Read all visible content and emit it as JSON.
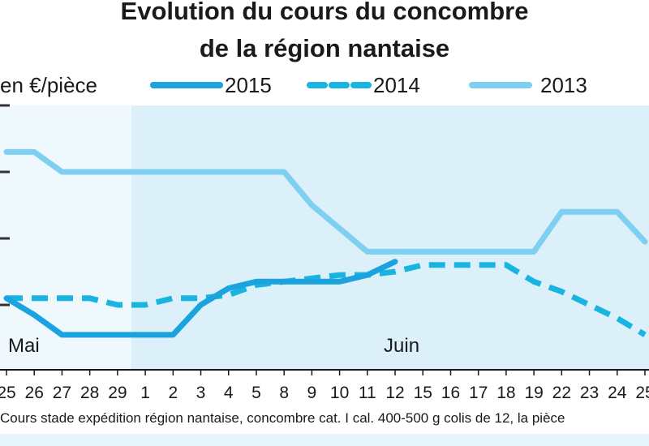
{
  "chart_data": {
    "type": "line",
    "title_line1": "Evolution du cours du concombre",
    "title_line2": "de la région nantaise",
    "ylabel": "en €/pièce",
    "footnote": "Cours stade expédition région nantaise, concombre cat. I cal. 400-500 g colis de 12, la pièce",
    "categories": [
      "25",
      "26",
      "27",
      "28",
      "29",
      "1",
      "2",
      "3",
      "4",
      "5",
      "8",
      "9",
      "10",
      "11",
      "12",
      "15",
      "16",
      "17",
      "18",
      "19",
      "22",
      "23",
      "24",
      "25"
    ],
    "months": [
      {
        "label": "Mai",
        "index": 0
      },
      {
        "label": "Juin",
        "index": 14
      }
    ],
    "grid_levels": [
      0.2,
      0.3,
      0.4,
      0.5,
      0.6
    ],
    "ylim": [
      0.2,
      0.64
    ],
    "series": [
      {
        "name": "2015",
        "color": "#1aa3de",
        "style": "solid",
        "values": [
          0.31,
          0.285,
          0.255,
          0.255,
          0.255,
          0.255,
          0.255,
          0.3,
          0.325,
          0.335,
          0.335,
          0.335,
          0.335,
          0.345,
          0.365,
          null,
          null,
          null,
          null,
          null,
          null,
          null,
          null,
          null
        ]
      },
      {
        "name": "2014",
        "color": "#1ab4e0",
        "style": "dashed",
        "values": [
          0.31,
          0.31,
          0.31,
          0.31,
          0.3,
          0.3,
          0.31,
          0.31,
          0.315,
          0.33,
          0.335,
          0.34,
          0.345,
          0.345,
          0.35,
          0.36,
          0.36,
          0.36,
          0.36,
          0.335,
          0.32,
          0.3,
          0.28,
          0.255
        ]
      },
      {
        "name": "2013",
        "color": "#7ecff0",
        "style": "solid",
        "values": [
          0.53,
          0.53,
          0.5,
          0.5,
          0.5,
          0.5,
          0.5,
          0.5,
          0.5,
          0.5,
          0.5,
          0.45,
          0.415,
          0.38,
          0.38,
          0.38,
          0.38,
          0.38,
          0.38,
          0.38,
          0.44,
          0.44,
          0.44,
          0.395
        ]
      }
    ]
  }
}
